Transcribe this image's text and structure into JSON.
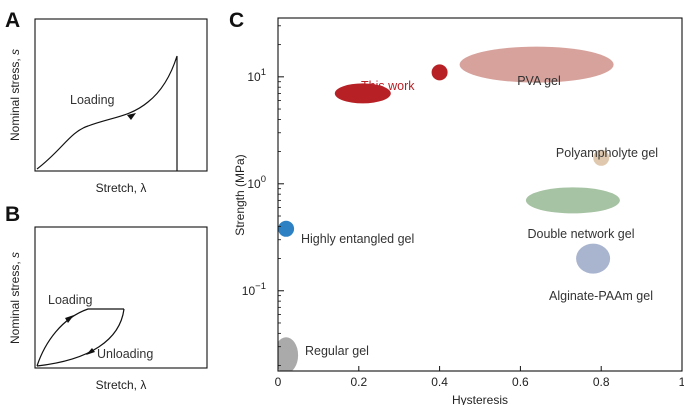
{
  "panels": {
    "a": {
      "letter": "A",
      "ylabel_main": "Nominal stress, ",
      "ylabel_sym": "s",
      "xlabel_main": "Stretch, ",
      "xlabel_sym": "λ",
      "curve_label": "Loading"
    },
    "b": {
      "letter": "B",
      "ylabel_main": "Nominal stress, ",
      "ylabel_sym": "s",
      "xlabel_main": "Stretch, ",
      "xlabel_sym": "λ",
      "loading_label": "Loading",
      "unloading_label": "Unloading"
    },
    "c": {
      "letter": "C"
    }
  },
  "chart_data": {
    "type": "scatter",
    "xlabel": "Hysteresis",
    "ylabel": "Strength (MPa)",
    "xlim": [
      0,
      1
    ],
    "ylim": [
      0.02,
      50
    ],
    "yscale": "log",
    "x_ticks": [
      "0",
      "0.2",
      "0.4",
      "0.6",
      "0.8",
      "1"
    ],
    "y_ticks": [
      {
        "base": "10",
        "exp": "1"
      },
      {
        "base": "10",
        "exp": "0"
      },
      {
        "base": "10",
        "exp": "−1"
      }
    ],
    "points": [
      {
        "name": "This work",
        "x": 0.21,
        "y": 7,
        "color": "#b72126",
        "label_color": "#b72126"
      },
      {
        "name": "",
        "x": 0.4,
        "y": 11,
        "color": "#b72126"
      },
      {
        "name": "PVA gel",
        "x": 0.64,
        "y": 13,
        "color": "#d7a29c"
      },
      {
        "name": "Polyampholyte gel",
        "x": 0.8,
        "y": 1.75,
        "color": "#dfc8ad"
      },
      {
        "name": "Double network gel",
        "x": 0.73,
        "y": 0.7,
        "color": "#a6c3a3"
      },
      {
        "name": "Highly entangled gel",
        "x": 0.02,
        "y": 0.38,
        "color": "#2e82c4"
      },
      {
        "name": "Alginate-PAAm gel",
        "x": 0.78,
        "y": 0.2,
        "color": "#a9b4cf"
      },
      {
        "name": "Regular gel",
        "x": 0.02,
        "y": 0.025,
        "color": "#aaaaaa"
      }
    ]
  }
}
